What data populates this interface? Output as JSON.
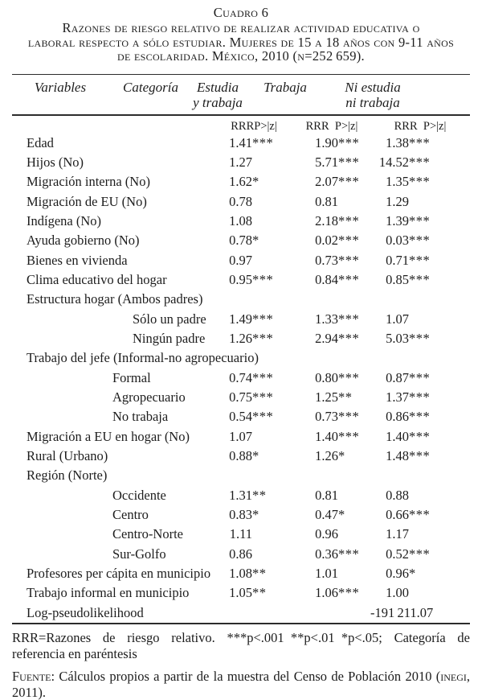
{
  "title": {
    "label": "Cuadro 6",
    "text": "Razones de riesgo relativo de realizar actividad educativa o\nlaboral respecto a sólo estudiar. Mujeres de 15 a 18 años con 9-11 años\nde escolaridad. México, 2010 (n=252 659)."
  },
  "table": {
    "columns": [
      "Variables",
      "Categoría",
      "Estudia\ny trabaja",
      "Trabaja",
      "Ni estudia\nni trabaja"
    ],
    "subheaders": [
      "RRRP>|z|",
      "RRR P>|z|",
      "RRR P>|z|"
    ],
    "rows": [
      {
        "label": "Edad",
        "indent": 0,
        "values": [
          "1.41***",
          "1.90***",
          "1.38***"
        ]
      },
      {
        "label": "Hijos (No)",
        "indent": 0,
        "values": [
          "1.27",
          "5.71***",
          "14.52***"
        ]
      },
      {
        "label": "Migración interna (No)",
        "indent": 0,
        "values": [
          "1.62*",
          "2.07***",
          "1.35***"
        ]
      },
      {
        "label": "Migración de EU (No)",
        "indent": 0,
        "values": [
          "0.78",
          "0.81",
          "1.29"
        ]
      },
      {
        "label": "Indígena (No)",
        "indent": 0,
        "values": [
          "1.08",
          "2.18***",
          "1.39***"
        ]
      },
      {
        "label": "Ayuda gobierno (No)",
        "indent": 0,
        "values": [
          "0.78*",
          "0.02***",
          "0.03***"
        ]
      },
      {
        "label": "Bienes en vivienda",
        "indent": 0,
        "values": [
          "0.97",
          "0.73***",
          "0.71***"
        ]
      },
      {
        "label": "Clima educativo del hogar",
        "indent": 0,
        "values": [
          "0.95***",
          "0.84***",
          "0.85***"
        ]
      },
      {
        "label": "Estructura hogar (Ambos padres)",
        "indent": 0,
        "values": [
          "",
          "",
          ""
        ]
      },
      {
        "label": "Sólo un padre",
        "indent": 2,
        "values": [
          "1.49***",
          "1.33***",
          "1.07"
        ]
      },
      {
        "label": "Ningún padre",
        "indent": 2,
        "values": [
          "1.26***",
          "2.94***",
          "5.03***"
        ]
      },
      {
        "label": "Trabajo del jefe (Informal-no agropecuario)",
        "indent": 0,
        "values": [
          "",
          "",
          ""
        ]
      },
      {
        "label": "Formal",
        "indent": 1,
        "values": [
          "0.74***",
          "0.80***",
          "0.87***"
        ]
      },
      {
        "label": "Agropecuario",
        "indent": 1,
        "values": [
          "0.75***",
          "1.25**",
          "1.37***"
        ]
      },
      {
        "label": "No trabaja",
        "indent": 1,
        "values": [
          "0.54***",
          "0.73***",
          "0.86***"
        ]
      },
      {
        "label": "Migración a EU en hogar (No)",
        "indent": 0,
        "values": [
          "1.07",
          "1.40***",
          "1.40***"
        ]
      },
      {
        "label": "Rural (Urbano)",
        "indent": 0,
        "values": [
          "0.88*",
          "1.26*",
          "1.48***"
        ]
      },
      {
        "label": "Región (Norte)",
        "indent": 0,
        "values": [
          "",
          "",
          ""
        ]
      },
      {
        "label": "Occidente",
        "indent": 1,
        "values": [
          "1.31**",
          "0.81",
          "0.88"
        ]
      },
      {
        "label": "Centro",
        "indent": 1,
        "values": [
          "0.83*",
          "0.47*",
          "0.66***"
        ]
      },
      {
        "label": "Centro-Norte",
        "indent": 1,
        "values": [
          "1.11",
          "0.96",
          "1.17"
        ]
      },
      {
        "label": "Sur-Golfo",
        "indent": 1,
        "values": [
          "0.86",
          "0.36***",
          "0.52***"
        ]
      },
      {
        "label": "Profesores per cápita en municipio",
        "indent": 0,
        "values": [
          "1.08**",
          "1.01",
          "0.96*"
        ]
      },
      {
        "label": "Trabajo informal en municipio",
        "indent": 0,
        "values": [
          "1.05**",
          "1.06***",
          "1.00"
        ]
      },
      {
        "label": "Log-pseudolikelihood",
        "indent": 0,
        "values": [
          "",
          "",
          "-191 211.07"
        ]
      }
    ]
  },
  "footnotes": {
    "note": "RRR=Razones de riesgo relativo. ***p<.001 **p<.01 *p<.05; Categoría de referencia en paréntesis",
    "source_label": "Fuente",
    "source_rest": ": Cálculos propios a partir de la muestra del Censo de Población 2010 (",
    "source_org": "inegi",
    "source_end": ", 2011)."
  }
}
